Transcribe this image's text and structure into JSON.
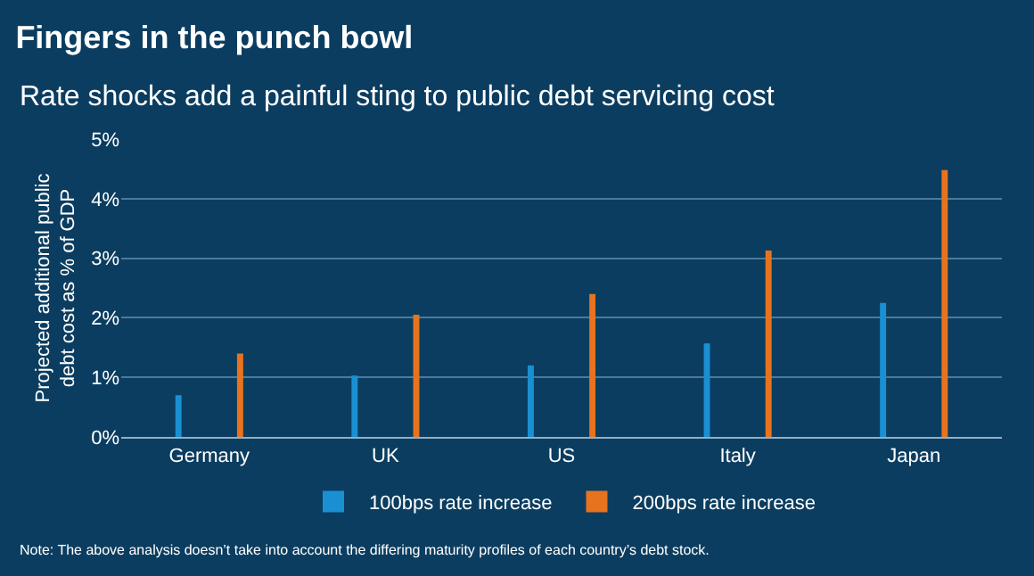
{
  "chart_data": {
    "type": "bar",
    "title": "Fingers in the punch bowl",
    "subtitle": "Rate shocks add a painful sting to public debt servicing cost",
    "ylabel": "Projected additional public debt cost as % of GDP",
    "categories": [
      "Germany",
      "UK",
      "US",
      "Italy",
      "Japan"
    ],
    "series": [
      {
        "name": "100bps rate increase",
        "color": "#1a90d2",
        "values": [
          0.7,
          1.03,
          1.2,
          1.57,
          2.25
        ]
      },
      {
        "name": "200bps rate increase",
        "color": "#e8731e",
        "values": [
          1.4,
          2.05,
          2.4,
          3.13,
          4.48
        ]
      }
    ],
    "ylim": [
      0,
      5
    ],
    "yticks": [
      {
        "value": 0,
        "label": "0%"
      },
      {
        "value": 1,
        "label": "1%"
      },
      {
        "value": 2,
        "label": "2%"
      },
      {
        "value": 3,
        "label": "3%"
      },
      {
        "value": 4,
        "label": "4%"
      },
      {
        "value": 5,
        "label": "5%"
      }
    ],
    "grid": "y",
    "legend": "bottom",
    "annotations": [
      "Note: The above analysis doesn’t take into account the differing maturity profiles of each country’s debt stock."
    ]
  }
}
